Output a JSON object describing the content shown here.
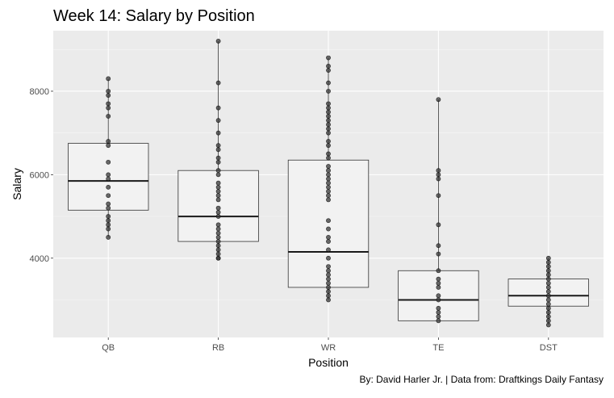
{
  "chart_data": {
    "type": "box",
    "title": "Week 14: Salary by Position",
    "xlabel": "Position",
    "ylabel": "Salary",
    "caption": "By: David Harler Jr. | Data from: Draftkings Daily Fantasy",
    "categories": [
      "QB",
      "RB",
      "WR",
      "TE",
      "DST"
    ],
    "ylim": [
      2100,
      9450
    ],
    "yticks": [
      4000,
      6000,
      8000
    ],
    "ytick_labels": [
      "4000",
      "6000",
      "8000"
    ],
    "grid": true,
    "colors": {
      "panel": "#ebebeb",
      "grid_major": "#ffffff",
      "box_fill": "#f2f2f2",
      "box_line": "#333333",
      "point": "#3a3a3a"
    },
    "boxes": [
      {
        "category": "QB",
        "min": 4500,
        "q1": 5150,
        "median": 5850,
        "q3": 6750,
        "max": 8300
      },
      {
        "category": "RB",
        "min": 4000,
        "q1": 4400,
        "median": 5000,
        "q3": 6100,
        "max": 9200
      },
      {
        "category": "WR",
        "min": 3000,
        "q1": 3300,
        "median": 4150,
        "q3": 6350,
        "max": 8800
      },
      {
        "category": "TE",
        "min": 2500,
        "q1": 2500,
        "median": 3000,
        "q3": 3700,
        "max": 7800
      },
      {
        "category": "DST",
        "min": 2400,
        "q1": 2850,
        "median": 3100,
        "q3": 3500,
        "max": 4000
      }
    ],
    "points": [
      {
        "category": "QB",
        "values": [
          8300,
          8000,
          7900,
          7700,
          7600,
          7400,
          6800,
          6700,
          6300,
          6000,
          5900,
          5700,
          5500,
          5300,
          5200,
          5000,
          4900,
          4800,
          4700,
          4500
        ]
      },
      {
        "category": "RB",
        "values": [
          9200,
          8200,
          7600,
          7300,
          7000,
          6700,
          6600,
          6400,
          6300,
          6100,
          6000,
          5800,
          5700,
          5600,
          5500,
          5400,
          5200,
          5100,
          5000,
          4800,
          4700,
          4600,
          4500,
          4400,
          4300,
          4200,
          4100,
          4000,
          4000
        ]
      },
      {
        "category": "WR",
        "values": [
          8800,
          8600,
          8500,
          8200,
          8000,
          7700,
          7600,
          7500,
          7400,
          7300,
          7200,
          7100,
          7000,
          6800,
          6700,
          6500,
          6400,
          6200,
          6100,
          6000,
          5900,
          5800,
          5700,
          5600,
          5500,
          5400,
          4900,
          4700,
          4500,
          4400,
          4200,
          4000,
          3800,
          3700,
          3600,
          3500,
          3400,
          3300,
          3200,
          3100,
          3000
        ]
      },
      {
        "category": "TE",
        "values": [
          7800,
          6100,
          6000,
          5900,
          5500,
          4800,
          4300,
          4100,
          3700,
          3500,
          3400,
          3300,
          3100,
          3000,
          2800,
          2700,
          2600,
          2500
        ]
      },
      {
        "category": "DST",
        "values": [
          4000,
          3900,
          3800,
          3700,
          3600,
          3500,
          3400,
          3300,
          3200,
          3100,
          3000,
          2900,
          2800,
          2700,
          2600,
          2500,
          2400
        ]
      }
    ]
  }
}
